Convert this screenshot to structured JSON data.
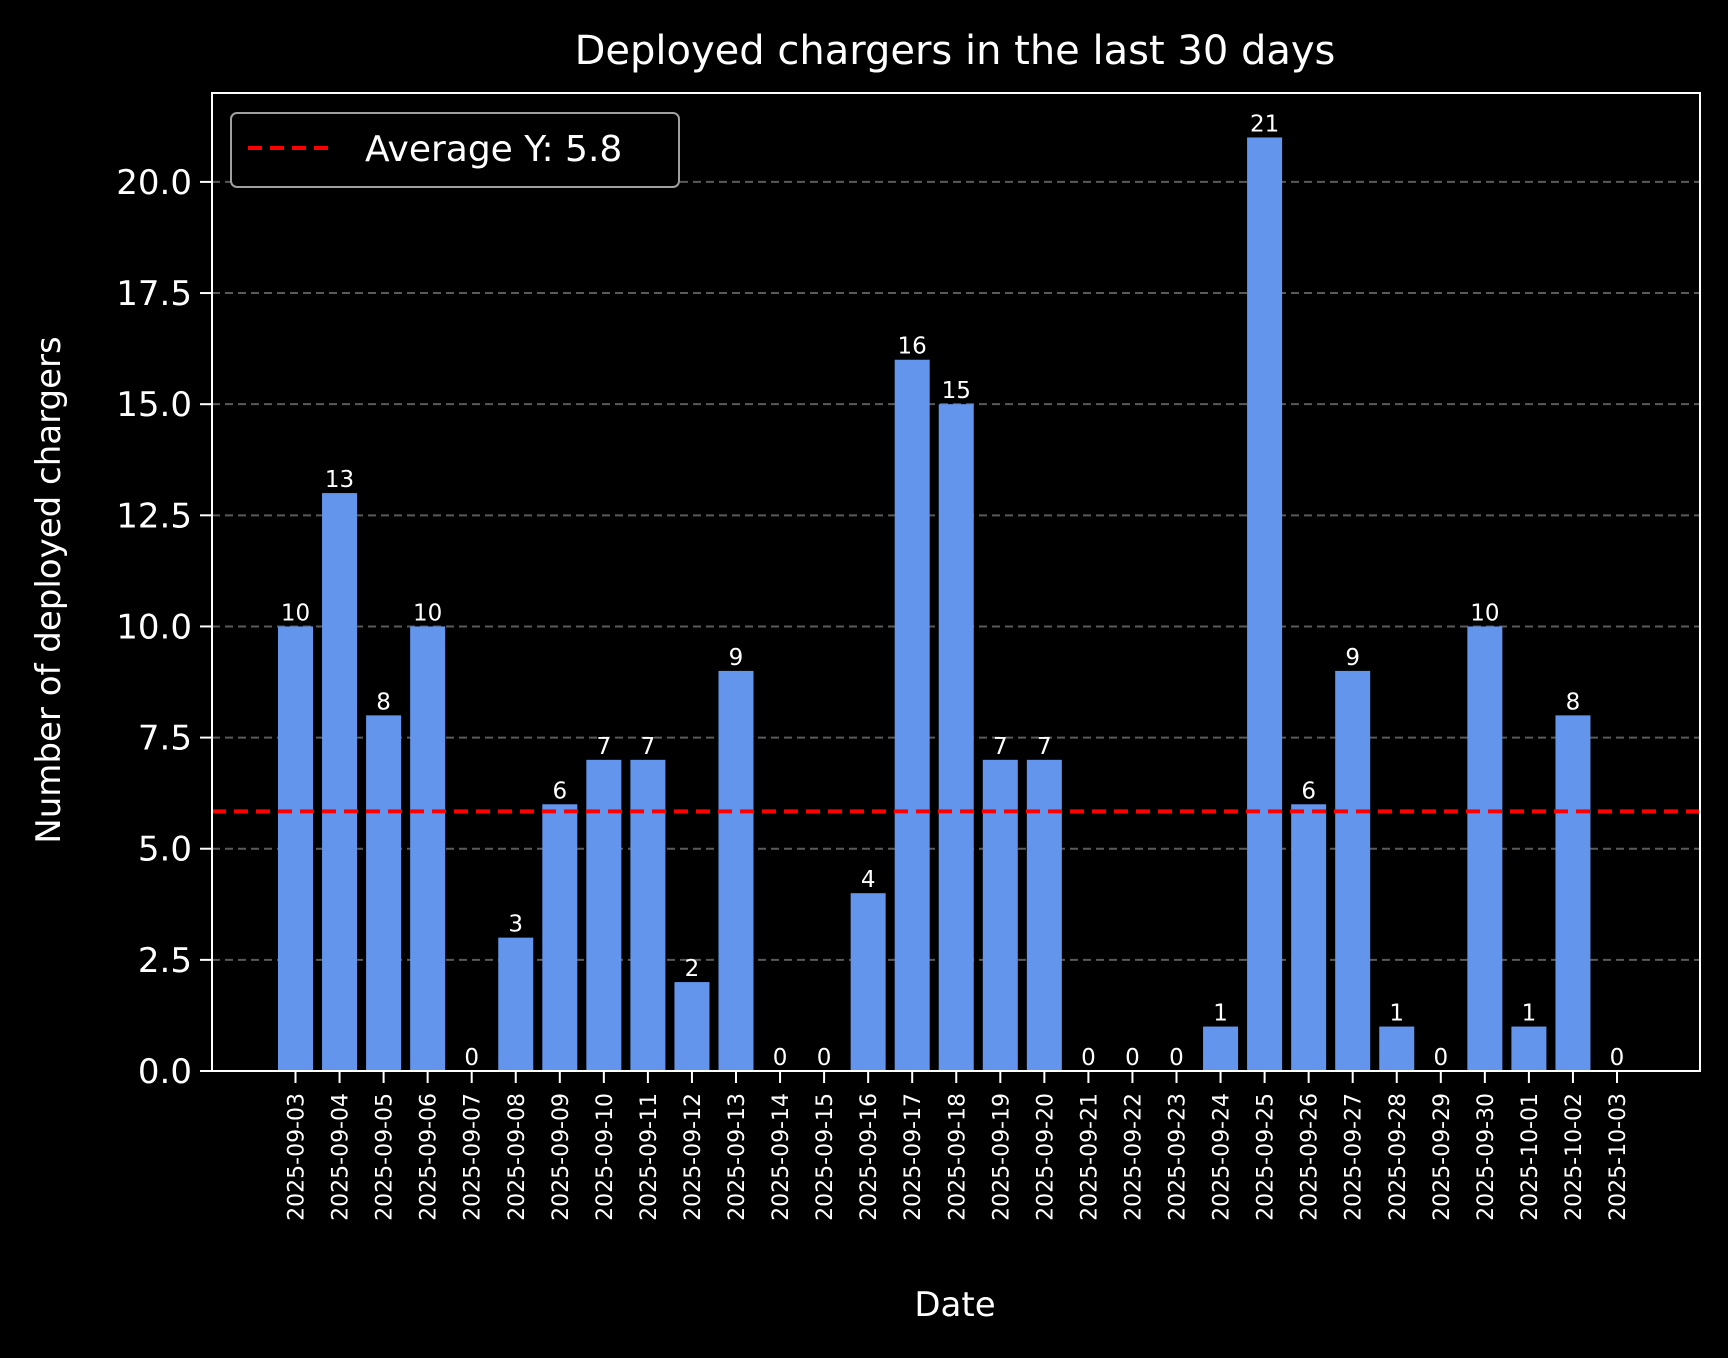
{
  "chart_data": {
    "type": "bar",
    "title": "Deployed chargers in the last 30 days",
    "xlabel": "Date",
    "ylabel": "Number of deployed chargers",
    "categories": [
      "2025-09-03",
      "2025-09-04",
      "2025-09-05",
      "2025-09-06",
      "2025-09-07",
      "2025-09-08",
      "2025-09-09",
      "2025-09-10",
      "2025-09-11",
      "2025-09-12",
      "2025-09-13",
      "2025-09-14",
      "2025-09-15",
      "2025-09-16",
      "2025-09-17",
      "2025-09-18",
      "2025-09-19",
      "2025-09-20",
      "2025-09-21",
      "2025-09-22",
      "2025-09-23",
      "2025-09-24",
      "2025-09-25",
      "2025-09-26",
      "2025-09-27",
      "2025-09-28",
      "2025-09-29",
      "2025-09-30",
      "2025-10-01",
      "2025-10-02",
      "2025-10-03"
    ],
    "values": [
      10,
      13,
      8,
      10,
      0,
      3,
      6,
      7,
      7,
      2,
      9,
      0,
      0,
      4,
      16,
      15,
      7,
      7,
      0,
      0,
      0,
      1,
      21,
      6,
      9,
      1,
      0,
      10,
      1,
      8,
      0
    ],
    "ylim": [
      0,
      22
    ],
    "yticks": [
      "0.0",
      "2.5",
      "5.0",
      "7.5",
      "10.0",
      "12.5",
      "15.0",
      "17.5",
      "20.0"
    ],
    "average": {
      "value": 5.84,
      "label": "Average Y: 5.8",
      "color": "#ff0000"
    },
    "bar_color": "#6495ed",
    "background": "#000000",
    "grid": "y-dashed",
    "legend_position": "top-left"
  }
}
